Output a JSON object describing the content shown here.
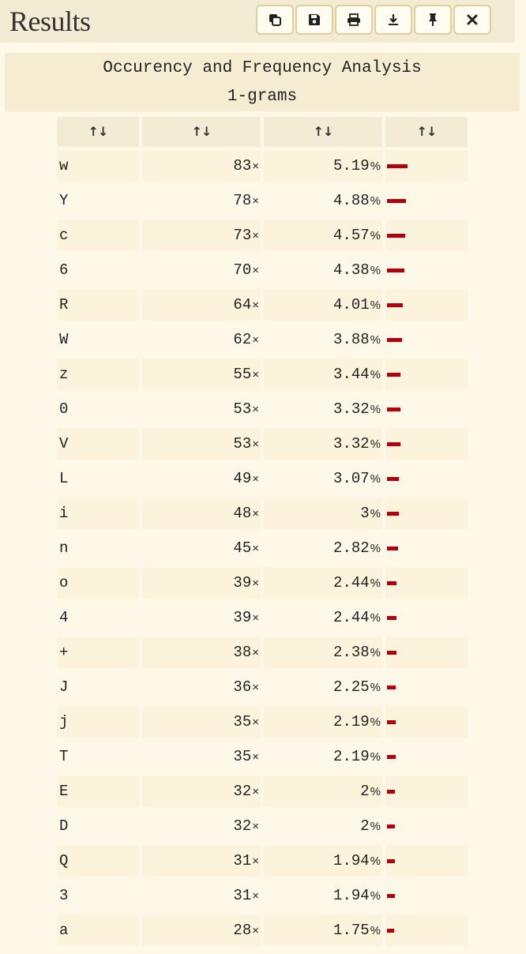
{
  "header": {
    "title": "Results",
    "buttons": [
      {
        "name": "copy-button",
        "icon": "copy-icon"
      },
      {
        "name": "save-button",
        "icon": "save-icon"
      },
      {
        "name": "print-button",
        "icon": "print-icon"
      },
      {
        "name": "download-button",
        "icon": "download-icon"
      },
      {
        "name": "pin-button",
        "icon": "pin-icon"
      },
      {
        "name": "close-button",
        "icon": "close-icon"
      }
    ]
  },
  "caption": {
    "title": "Occurency and Frequency Analysis",
    "subtitle": "1-grams"
  },
  "table": {
    "sort_glyph": "↑↓",
    "times_suffix": "×",
    "percent_suffix": "%",
    "bar_color": "#b00010",
    "rows": [
      {
        "char": "w",
        "count": "83",
        "freq": "5.19",
        "fraction": 0.0519
      },
      {
        "char": "Y",
        "count": "78",
        "freq": "4.88",
        "fraction": 0.0488
      },
      {
        "char": "c",
        "count": "73",
        "freq": "4.57",
        "fraction": 0.0457
      },
      {
        "char": "6",
        "count": "70",
        "freq": "4.38",
        "fraction": 0.0438
      },
      {
        "char": "R",
        "count": "64",
        "freq": "4.01",
        "fraction": 0.0401
      },
      {
        "char": "W",
        "count": "62",
        "freq": "3.88",
        "fraction": 0.0388
      },
      {
        "char": "z",
        "count": "55",
        "freq": "3.44",
        "fraction": 0.0344
      },
      {
        "char": "0",
        "count": "53",
        "freq": "3.32",
        "fraction": 0.0332
      },
      {
        "char": "V",
        "count": "53",
        "freq": "3.32",
        "fraction": 0.0332
      },
      {
        "char": "L",
        "count": "49",
        "freq": "3.07",
        "fraction": 0.0307
      },
      {
        "char": "i",
        "count": "48",
        "freq": "3",
        "fraction": 0.03
      },
      {
        "char": "n",
        "count": "45",
        "freq": "2.82",
        "fraction": 0.0282
      },
      {
        "char": "o",
        "count": "39",
        "freq": "2.44",
        "fraction": 0.0244
      },
      {
        "char": "4",
        "count": "39",
        "freq": "2.44",
        "fraction": 0.0244
      },
      {
        "char": "+",
        "count": "38",
        "freq": "2.38",
        "fraction": 0.0238
      },
      {
        "char": "J",
        "count": "36",
        "freq": "2.25",
        "fraction": 0.0225
      },
      {
        "char": "j",
        "count": "35",
        "freq": "2.19",
        "fraction": 0.0219
      },
      {
        "char": "T",
        "count": "35",
        "freq": "2.19",
        "fraction": 0.0219
      },
      {
        "char": "E",
        "count": "32",
        "freq": "2",
        "fraction": 0.02
      },
      {
        "char": "D",
        "count": "32",
        "freq": "2",
        "fraction": 0.02
      },
      {
        "char": "Q",
        "count": "31",
        "freq": "1.94",
        "fraction": 0.0194
      },
      {
        "char": "3",
        "count": "31",
        "freq": "1.94",
        "fraction": 0.0194
      },
      {
        "char": "a",
        "count": "28",
        "freq": "1.75",
        "fraction": 0.0175
      }
    ]
  }
}
